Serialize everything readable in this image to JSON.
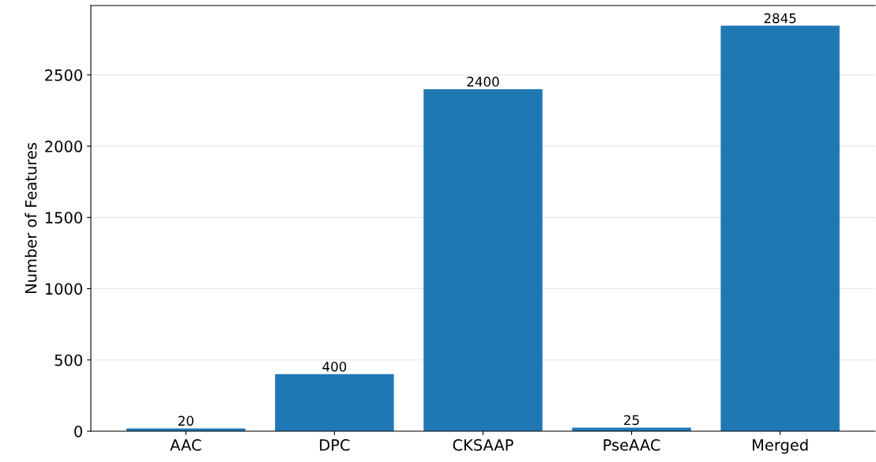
{
  "chart_data": {
    "type": "bar",
    "ylabel": "Number of Features",
    "categories": [
      "AAC",
      "DPC",
      "CKSAAP",
      "PseAAC",
      "Merged"
    ],
    "values": [
      20,
      400,
      2400,
      25,
      2845
    ],
    "color": "#1f77b4",
    "data_labels": true,
    "ylim": [
      0,
      2987
    ],
    "yticks": [
      0,
      500,
      1000,
      1500,
      2000,
      2500
    ],
    "grid": "y"
  }
}
